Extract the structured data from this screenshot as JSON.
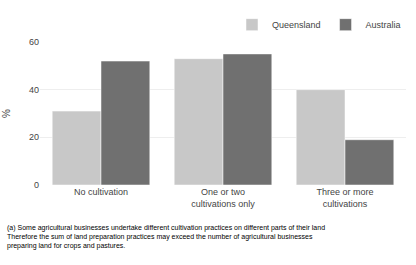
{
  "chart_data": {
    "type": "bar",
    "categories": [
      "No cultivation",
      "One or two\ncultivations only",
      "Three or more\ncultivations"
    ],
    "series": [
      {
        "name": "Queensland",
        "color": "#c8c8c8",
        "values": [
          31,
          53,
          40
        ]
      },
      {
        "name": "Australia",
        "color": "#707070",
        "values": [
          52,
          55,
          19
        ]
      }
    ],
    "ylabel": "%",
    "ylim": [
      0,
      60
    ],
    "yticks": [
      0,
      20,
      40,
      60
    ],
    "grid": true,
    "legend": "upper right",
    "annotations": [
      "(a) Some agricultural businesses undertake different cultivation practices on different parts of their land\nTherefore the sum of land preparation practices may exceed the number of agricultural businesses\npreparing land for crops and pastures."
    ]
  }
}
